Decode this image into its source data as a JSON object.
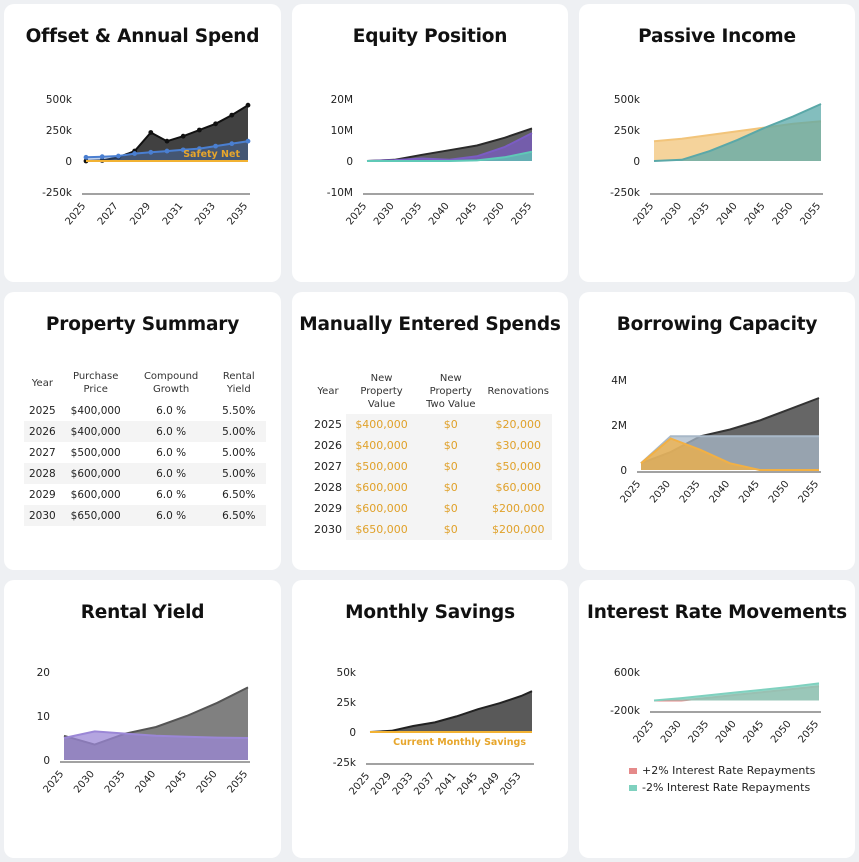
{
  "cards": {
    "offset": {
      "title": "Offset & Annual Spend"
    },
    "equity": {
      "title": "Equity Position"
    },
    "passive": {
      "title": "Passive Income"
    },
    "property_summary": {
      "title": "Property Summary"
    },
    "manual_spends": {
      "title": "Manually Entered Spends"
    },
    "borrowing": {
      "title": "Borrowing Capacity"
    },
    "rental": {
      "title": "Rental Yield"
    },
    "savings": {
      "title": "Monthly Savings"
    },
    "interest": {
      "title": "Interest Rate Movements"
    }
  },
  "property_summary": {
    "headers": [
      "Year",
      "Purchase Price",
      "Compound Growth",
      "Rental Yield"
    ],
    "rows": [
      [
        "2025",
        "$400,000",
        "6.0 %",
        "5.50%"
      ],
      [
        "2026",
        "$400,000",
        "6.0 %",
        "5.00%"
      ],
      [
        "2027",
        "$500,000",
        "6.0 %",
        "5.00%"
      ],
      [
        "2028",
        "$600,000",
        "6.0 %",
        "5.00%"
      ],
      [
        "2029",
        "$600,000",
        "6.0 %",
        "6.50%"
      ],
      [
        "2030",
        "$650,000",
        "6.0 %",
        "6.50%"
      ]
    ]
  },
  "manual_spends": {
    "headers": [
      "Year",
      "New Property Value",
      "New Property Two Value",
      "Renovations"
    ],
    "rows": [
      [
        "2025",
        "$400,000",
        "$0",
        "$20,000"
      ],
      [
        "2026",
        "$400,000",
        "$0",
        "$30,000"
      ],
      [
        "2027",
        "$500,000",
        "$0",
        "$50,000"
      ],
      [
        "2028",
        "$600,000",
        "$0",
        "$60,000"
      ],
      [
        "2029",
        "$600,000",
        "$0",
        "$200,000"
      ],
      [
        "2030",
        "$650,000",
        "$0",
        "$200,000"
      ]
    ]
  },
  "chart_data": [
    {
      "id": "offset",
      "type": "line",
      "title": "Offset & Annual Spend",
      "x": [
        2025,
        2026,
        2027,
        2028,
        2029,
        2030,
        2031,
        2032,
        2033,
        2034,
        2035
      ],
      "xticks": [
        "2025",
        "2027",
        "2029",
        "2031",
        "2033",
        "2035"
      ],
      "yticks": [
        "500k",
        "250k",
        "0",
        "-250k"
      ],
      "ylim": [
        -250000,
        500000
      ],
      "series": [
        {
          "name": "",
          "color": "#111111",
          "values": [
            0,
            5000,
            30000,
            80000,
            230000,
            160000,
            200000,
            250000,
            300000,
            370000,
            450000
          ]
        },
        {
          "name": "",
          "color": "#4a7fd1",
          "values": [
            30000,
            35000,
            40000,
            60000,
            70000,
            80000,
            90000,
            100000,
            120000,
            140000,
            160000
          ]
        },
        {
          "name": "Safety Net",
          "color": "#f2b233",
          "values": [
            0,
            0,
            0,
            0,
            0,
            0,
            0,
            0,
            0,
            0,
            0
          ]
        }
      ],
      "annotation": "Safety Net"
    },
    {
      "id": "equity",
      "type": "area",
      "title": "Equity Position",
      "x": [
        2025,
        2030,
        2035,
        2040,
        2045,
        2050,
        2055
      ],
      "xticks": [
        "2025",
        "2030",
        "2035",
        "2040",
        "2045",
        "2050",
        "2055"
      ],
      "yticks": [
        "20M",
        "10M",
        "0",
        "-10M"
      ],
      "ylim": [
        -10000000,
        20000000
      ],
      "series": [
        {
          "name": "",
          "color": "#2a2a2a",
          "values": [
            0,
            400000,
            2000000,
            3500000,
            5000000,
            7500000,
            10500000
          ]
        },
        {
          "name": "",
          "color": "#7b5cc4",
          "values": [
            0,
            300000,
            800000,
            400000,
            1500000,
            4500000,
            9000000
          ]
        },
        {
          "name": "",
          "color": "#5fc9b7",
          "values": [
            0,
            0,
            0,
            0,
            200000,
            1200000,
            3000000
          ]
        }
      ]
    },
    {
      "id": "passive",
      "type": "area",
      "title": "Passive Income",
      "x": [
        2025,
        2030,
        2035,
        2040,
        2045,
        2050,
        2055
      ],
      "xticks": [
        "2025",
        "2030",
        "2035",
        "2040",
        "2045",
        "2050",
        "2055"
      ],
      "yticks": [
        "500k",
        "250k",
        "0",
        "-250k"
      ],
      "ylim": [
        -250000,
        500000
      ],
      "series": [
        {
          "name": "",
          "color": "#f2c47a",
          "values": [
            160000,
            180000,
            210000,
            240000,
            270000,
            300000,
            320000
          ]
        },
        {
          "name": "",
          "color": "#5aa8a8",
          "values": [
            0,
            10000,
            80000,
            170000,
            270000,
            360000,
            460000
          ]
        }
      ]
    },
    {
      "id": "borrowing",
      "type": "area",
      "title": "Borrowing Capacity",
      "x": [
        2025,
        2030,
        2035,
        2040,
        2045,
        2050,
        2055
      ],
      "xticks": [
        "2025",
        "2030",
        "2035",
        "2040",
        "2045",
        "2050",
        "2055"
      ],
      "yticks": [
        "4M",
        "2M",
        "0"
      ],
      "ylim": [
        0,
        4000000
      ],
      "series": [
        {
          "name": "",
          "color": "#333333",
          "values": [
            300000,
            800000,
            1500000,
            1800000,
            2200000,
            2700000,
            3200000
          ]
        },
        {
          "name": "",
          "color": "#a8b8c8",
          "values": [
            300000,
            1500000,
            1500000,
            1500000,
            1500000,
            1500000,
            1500000
          ]
        },
        {
          "name": "",
          "color": "#f2b044",
          "values": [
            300000,
            1400000,
            900000,
            300000,
            0,
            0,
            0
          ]
        }
      ]
    },
    {
      "id": "rental",
      "type": "area",
      "title": "Rental Yield",
      "x": [
        2025,
        2030,
        2035,
        2040,
        2045,
        2050,
        2055
      ],
      "xticks": [
        "2025",
        "2030",
        "2035",
        "2040",
        "2045",
        "2050",
        "2055"
      ],
      "yticks": [
        "20",
        "10",
        "0"
      ],
      "ylim": [
        0,
        20
      ],
      "series": [
        {
          "name": "",
          "color": "#555555",
          "values": [
            5.5,
            3.5,
            6.0,
            7.5,
            10.0,
            13.0,
            16.5
          ]
        },
        {
          "name": "",
          "color": "#9b87d6",
          "values": [
            5.0,
            6.5,
            6.0,
            5.5,
            5.3,
            5.1,
            5.0
          ]
        }
      ]
    },
    {
      "id": "savings",
      "type": "area",
      "title": "Monthly Savings",
      "x": [
        2025,
        2029,
        2033,
        2037,
        2041,
        2045,
        2049,
        2053,
        2055
      ],
      "xticks": [
        "2025",
        "2029",
        "2033",
        "2037",
        "2041",
        "2045",
        "2049",
        "2053"
      ],
      "yticks": [
        "50k",
        "25k",
        "0",
        "-25k"
      ],
      "ylim": [
        -25000,
        50000
      ],
      "series": [
        {
          "name": "",
          "color": "#222222",
          "values": [
            0,
            1000,
            5000,
            8000,
            13000,
            19000,
            24000,
            30000,
            34000
          ]
        },
        {
          "name": "Current Monthly Savings",
          "color": "#f2b233",
          "values": [
            0,
            0,
            0,
            0,
            0,
            0,
            0,
            0,
            0
          ]
        }
      ],
      "annotation": "Current Monthly Savings"
    },
    {
      "id": "interest",
      "type": "area",
      "title": "Interest Rate Movements",
      "x": [
        2025,
        2030,
        2035,
        2040,
        2045,
        2050,
        2055
      ],
      "xticks": [
        "2025",
        "2030",
        "2035",
        "2040",
        "2045",
        "2050",
        "2055"
      ],
      "yticks": [
        "600k",
        "-200k"
      ],
      "ylim": [
        -200000,
        600000
      ],
      "series": [
        {
          "name": "+2% Interest Rate Repayments",
          "color": "#e58a8a",
          "values": [
            0,
            0,
            60000,
            120000,
            180000,
            240000,
            300000
          ]
        },
        {
          "name": "-2% Interest Rate Repayments",
          "color": "#7fd1bf",
          "values": [
            0,
            50000,
            110000,
            170000,
            230000,
            290000,
            360000
          ]
        }
      ],
      "legend": [
        "+2% Interest Rate Repayments",
        "-2% Interest Rate Repayments"
      ]
    }
  ]
}
